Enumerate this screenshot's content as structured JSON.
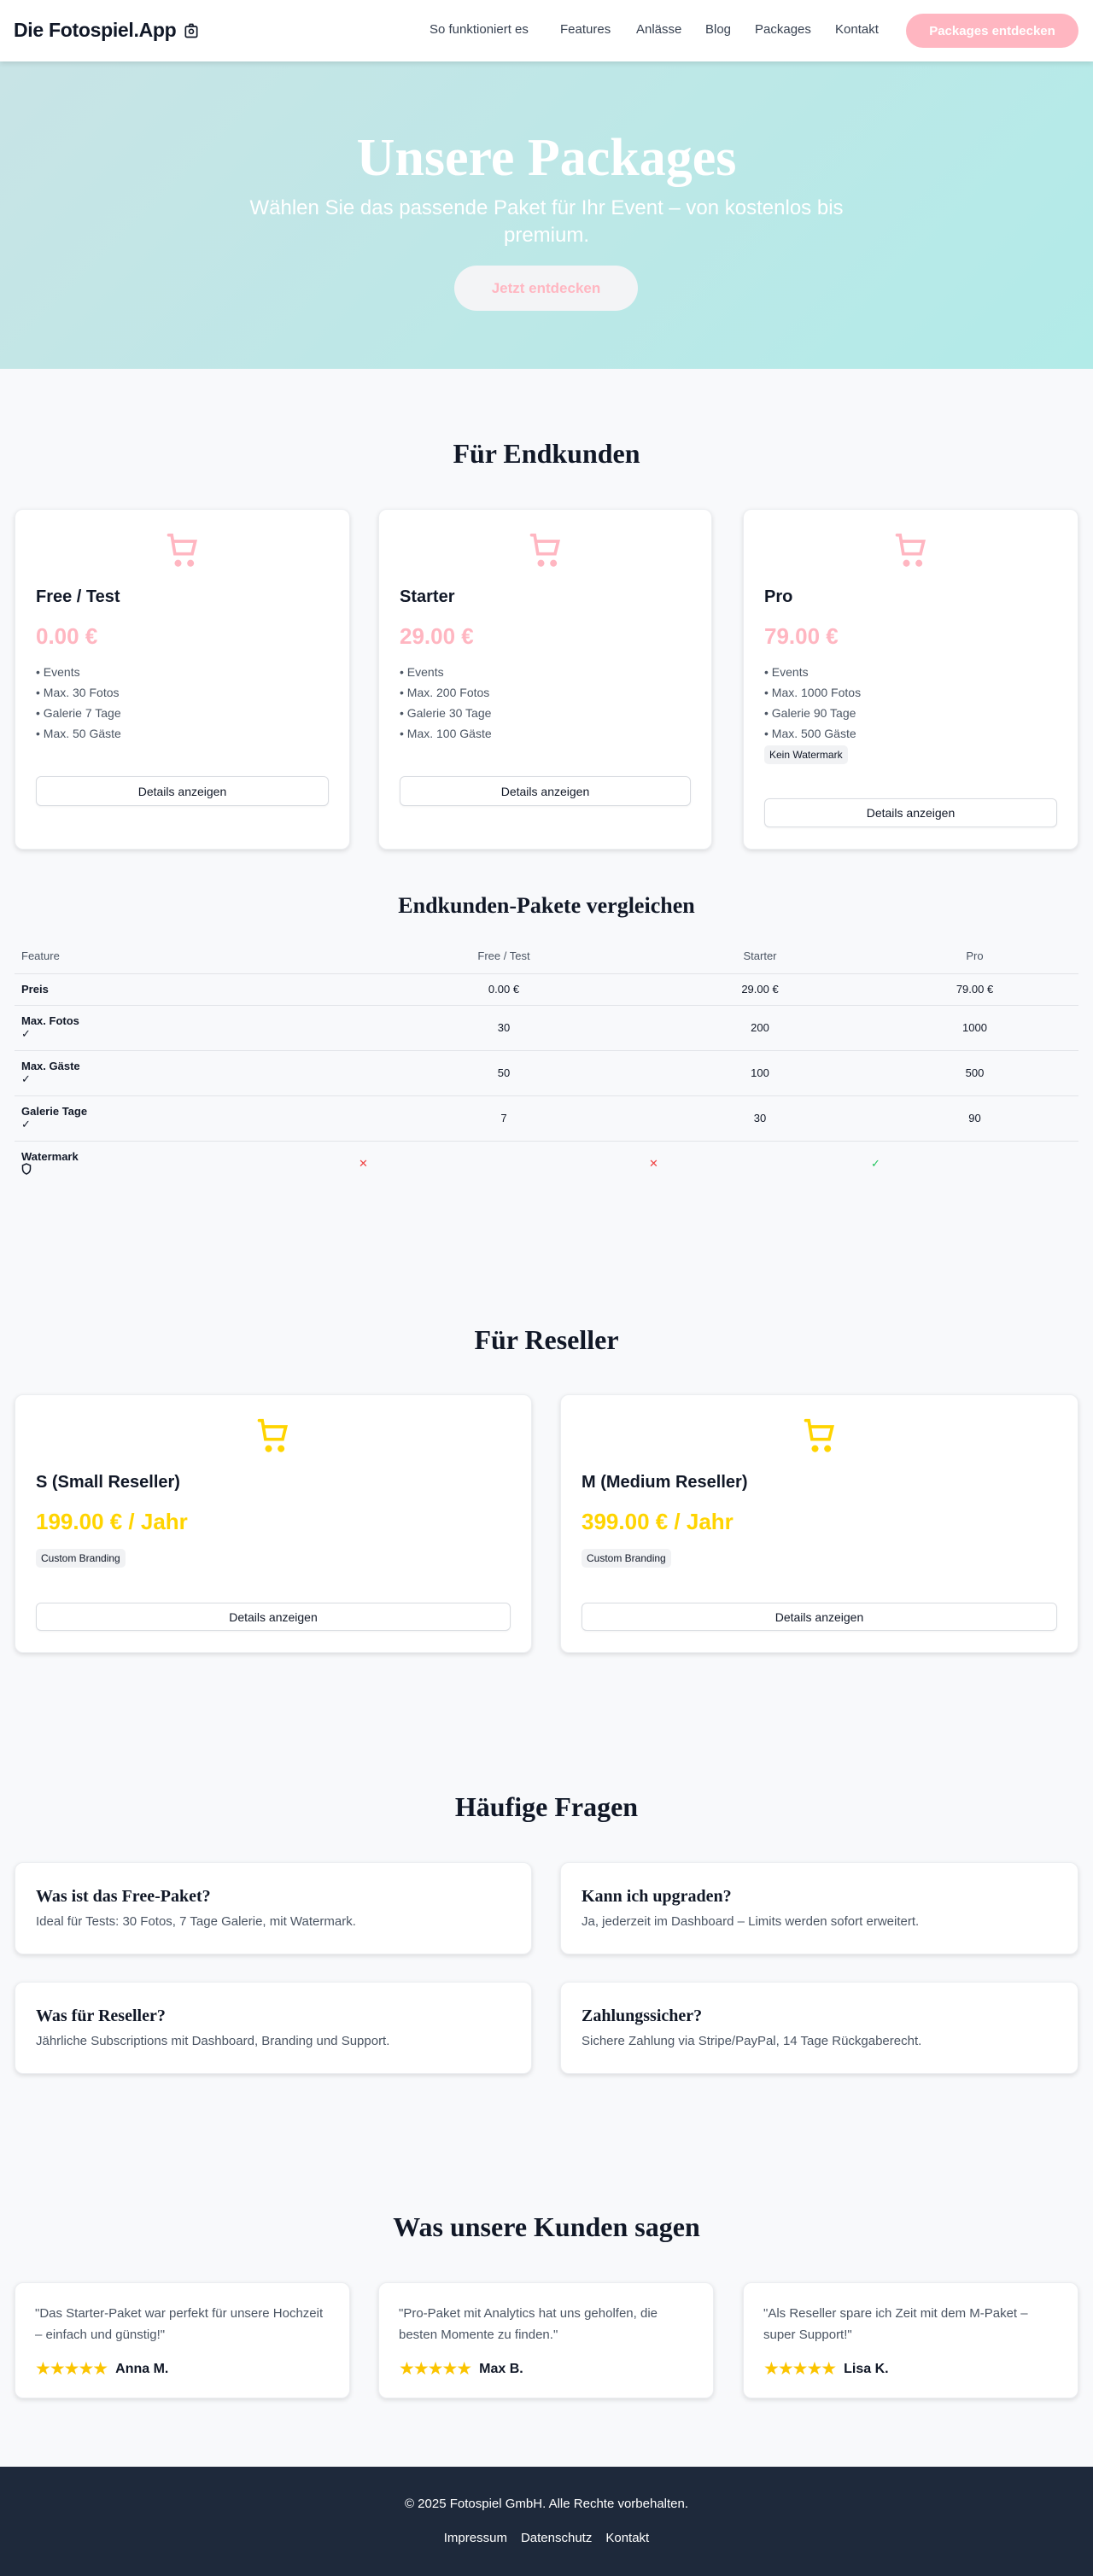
{
  "header": {
    "logo": "Die Fotospiel.App",
    "logo_icon": "camera-icon",
    "nav": [
      "So funktioniert es",
      "Features",
      "Anlässe",
      "Blog",
      "Packages",
      "Kontakt"
    ],
    "cta": "Packages entdecken"
  },
  "hero": {
    "title": "Unsere Packages",
    "subtitle": "Wählen Sie das passende Paket für Ihr Event – von kostenlos bis premium.",
    "button": "Jetzt entdecken"
  },
  "colors": {
    "accent_pink": "#ffb6c1",
    "accent_yellow": "#ffd400",
    "footer_bg": "#1e293b"
  },
  "endkunden": {
    "heading": "Für Endkunden",
    "packages": [
      {
        "name": "Free / Test",
        "price": "0.00 €",
        "features": [
          "Events",
          "Max. 30 Fotos",
          "Galerie 7 Tage",
          "Max. 50 Gäste"
        ],
        "button": "Details anzeigen"
      },
      {
        "name": "Starter",
        "price": "29.00 €",
        "features": [
          "Events",
          "Max. 200 Fotos",
          "Galerie 30 Tage",
          "Max. 100 Gäste"
        ],
        "button": "Details anzeigen"
      },
      {
        "name": "Pro",
        "price": "79.00 €",
        "features": [
          "Events",
          "Max. 1000 Fotos",
          "Galerie 90 Tage",
          "Max. 500 Gäste"
        ],
        "badge": "Kein Watermark",
        "button": "Details anzeigen"
      }
    ]
  },
  "compare": {
    "heading": "Endkunden-Pakete vergleichen",
    "columns": [
      "Feature",
      "Free / Test",
      "Starter",
      "Pro"
    ],
    "rows": [
      {
        "label": "Preis",
        "values": [
          "0.00 €",
          "29.00 €",
          "79.00 €"
        ]
      },
      {
        "label": "Max. Fotos",
        "icon": "check-icon",
        "values": [
          "30",
          "200",
          "1000"
        ]
      },
      {
        "label": "Max. Gäste",
        "icon": "check-icon",
        "values": [
          "50",
          "100",
          "500"
        ]
      },
      {
        "label": "Galerie Tage",
        "icon": "check-icon",
        "values": [
          "7",
          "30",
          "90"
        ]
      },
      {
        "label": "Watermark",
        "icon": "shield-icon",
        "values": [
          false,
          false,
          true
        ]
      }
    ]
  },
  "reseller": {
    "heading": "Für Reseller",
    "packages": [
      {
        "name": "S (Small Reseller)",
        "price": "199.00 € / Jahr",
        "badge": "Custom Branding",
        "button": "Details anzeigen"
      },
      {
        "name": "M (Medium Reseller)",
        "price": "399.00 € / Jahr",
        "badge": "Custom Branding",
        "button": "Details anzeigen"
      }
    ]
  },
  "faq": {
    "heading": "Häufige Fragen",
    "items": [
      {
        "q": "Was ist das Free-Paket?",
        "a": "Ideal für Tests: 30 Fotos, 7 Tage Galerie, mit Watermark."
      },
      {
        "q": "Kann ich upgraden?",
        "a": "Ja, jederzeit im Dashboard – Limits werden sofort erweitert."
      },
      {
        "q": "Was für Reseller?",
        "a": "Jährliche Subscriptions mit Dashboard, Branding und Support."
      },
      {
        "q": "Zahlungssicher?",
        "a": "Sichere Zahlung via Stripe/PayPal, 14 Tage Rückgaberecht."
      }
    ]
  },
  "testimonials": {
    "heading": "Was unsere Kunden sagen",
    "items": [
      {
        "quote": "\"Das Starter-Paket war perfekt für unsere Hochzeit – einfach und günstig!\"",
        "name": "Anna M.",
        "rating": 5
      },
      {
        "quote": "\"Pro-Paket mit Analytics hat uns geholfen, die besten Momente zu finden.\"",
        "name": "Max B.",
        "rating": 5
      },
      {
        "quote": "\"Als Reseller spare ich Zeit mit dem M-Paket – super Support!\"",
        "name": "Lisa K.",
        "rating": 5
      }
    ]
  },
  "footer": {
    "copyright": "© 2025 Fotospiel GmbH. Alle Rechte vorbehalten.",
    "links": [
      "Impressum",
      "Datenschutz",
      "Kontakt"
    ]
  }
}
